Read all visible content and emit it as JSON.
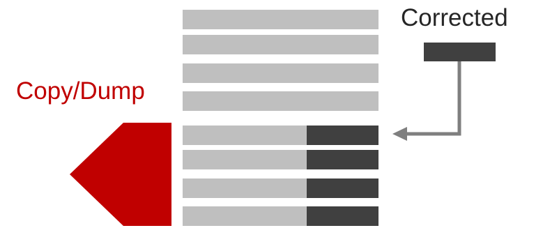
{
  "labels": {
    "copy_dump": "Copy/Dump",
    "corrected": "Corrected"
  },
  "rows": [
    {
      "has_corrected_segment": false
    },
    {
      "has_corrected_segment": false
    },
    {
      "has_corrected_segment": false
    },
    {
      "has_corrected_segment": false
    },
    {
      "has_corrected_segment": true
    },
    {
      "has_corrected_segment": true
    },
    {
      "has_corrected_segment": true
    },
    {
      "has_corrected_segment": true
    }
  ],
  "colors": {
    "accent_red": "#c00000",
    "bar_gray": "#bfbfbf",
    "dark_segment": "#404040",
    "arrow_gray": "#7f7f7f",
    "label_dark": "#262626"
  }
}
